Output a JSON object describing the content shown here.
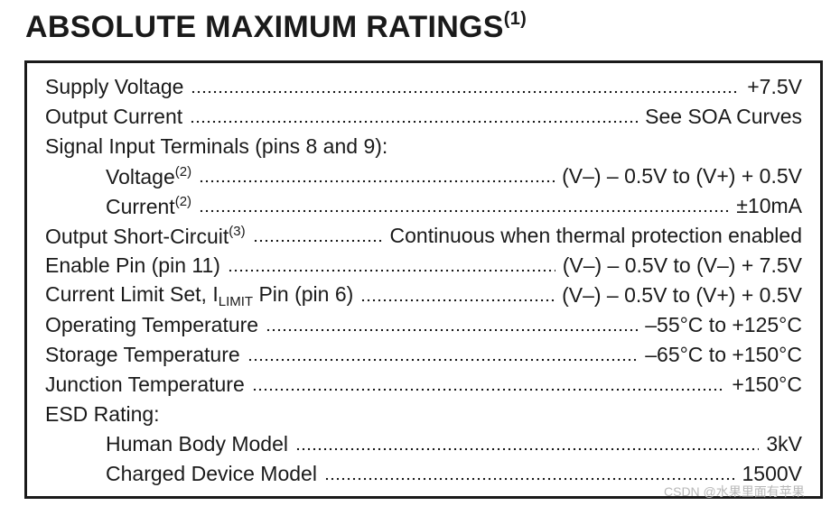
{
  "title": "ABSOLUTE MAXIMUM RATINGS",
  "title_note": "(1)",
  "rows": [
    {
      "label": "Supply Voltage",
      "value": "+7.5V"
    },
    {
      "label": "Output Current",
      "value": "See SOA Curves"
    },
    {
      "label": "Signal Input Terminals (pins 8 and 9):"
    },
    {
      "label": "Voltage",
      "note": "(2)",
      "value": "(V–) – 0.5V to (V+) + 0.5V",
      "indent": true
    },
    {
      "label": "Current",
      "note": "(2)",
      "value": "±10mA",
      "indent": true
    },
    {
      "label": "Output Short-Circuit",
      "note": "(3)",
      "value": "Continuous when thermal protection enabled"
    },
    {
      "label": "Enable Pin (pin 11)",
      "value": "(V–) – 0.5V to (V–) + 7.5V"
    },
    {
      "label": "Current Limit Set, I",
      "sub": "LIMIT",
      "label_end": " Pin (pin 6)",
      "value": "(V–) – 0.5V to (V+) + 0.5V"
    },
    {
      "label": "Operating Temperature",
      "value": "–55°C to +125°C"
    },
    {
      "label": "Storage Temperature",
      "value": "–65°C to +150°C"
    },
    {
      "label": "Junction Temperature",
      "value": "+150°C"
    },
    {
      "label": "ESD Rating:"
    },
    {
      "label": "Human Body Model",
      "value": "3kV",
      "indent": true
    },
    {
      "label": "Charged Device Model",
      "value": "1500V",
      "indent": true
    }
  ],
  "watermark": "CSDN @水果里面有苹果"
}
